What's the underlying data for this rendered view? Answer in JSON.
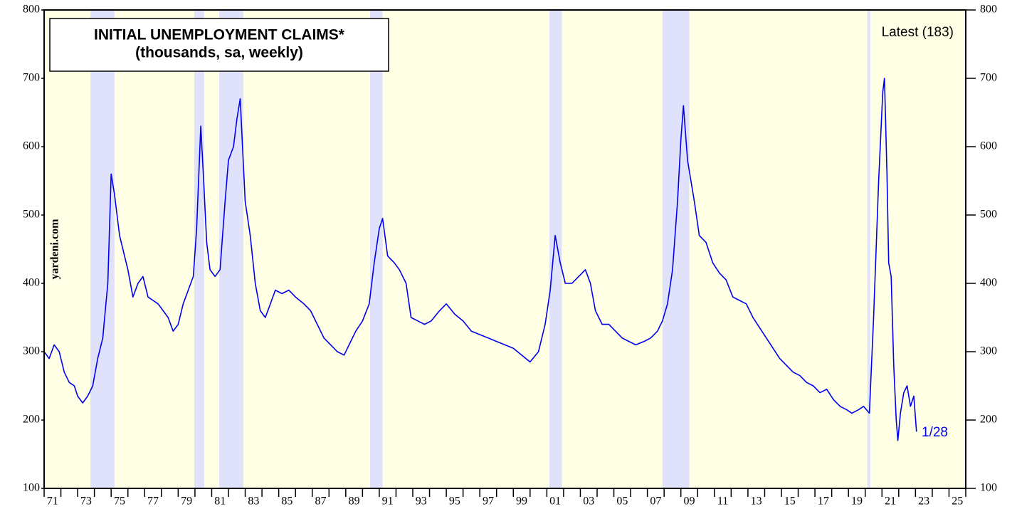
{
  "chart_data": {
    "type": "line",
    "title": "INITIAL UNEMPLOYMENT CLAIMS*",
    "subtitle": "(thousands, sa, weekly)",
    "annotations": {
      "latest": "Latest (183)",
      "date": "1/28",
      "source": "yardeni.com"
    },
    "x": [
      1971.0,
      1971.3,
      1971.6,
      1971.9,
      1972.2,
      1972.5,
      1972.8,
      1973.0,
      1973.3,
      1973.6,
      1973.9,
      1974.2,
      1974.5,
      1974.8,
      1975.0,
      1975.2,
      1975.5,
      1975.8,
      1976.0,
      1976.3,
      1976.6,
      1976.9,
      1977.2,
      1977.5,
      1977.8,
      1978.1,
      1978.4,
      1978.7,
      1979.0,
      1979.3,
      1979.6,
      1979.9,
      1980.1,
      1980.35,
      1980.5,
      1980.7,
      1980.9,
      1981.2,
      1981.5,
      1981.8,
      1982.0,
      1982.3,
      1982.5,
      1982.7,
      1983.0,
      1983.3,
      1983.6,
      1983.9,
      1984.2,
      1984.5,
      1984.8,
      1985.2,
      1985.6,
      1986.0,
      1986.5,
      1986.9,
      1987.3,
      1987.7,
      1988.1,
      1988.5,
      1988.9,
      1989.2,
      1989.6,
      1990.0,
      1990.4,
      1990.7,
      1991.0,
      1991.2,
      1991.5,
      1991.9,
      1992.2,
      1992.6,
      1992.9,
      1993.3,
      1993.7,
      1994.1,
      1994.6,
      1995.0,
      1995.5,
      1996.0,
      1996.5,
      1997.0,
      1997.5,
      1998.0,
      1998.5,
      1999.0,
      1999.5,
      2000.0,
      2000.5,
      2000.9,
      2001.2,
      2001.5,
      2001.8,
      2002.1,
      2002.5,
      2002.9,
      2003.3,
      2003.6,
      2003.9,
      2004.3,
      2004.7,
      2005.1,
      2005.5,
      2005.9,
      2006.3,
      2006.8,
      2007.2,
      2007.6,
      2007.9,
      2008.2,
      2008.5,
      2008.8,
      2009.0,
      2009.15,
      2009.4,
      2009.8,
      2010.1,
      2010.5,
      2010.9,
      2011.3,
      2011.7,
      2012.1,
      2012.5,
      2012.9,
      2013.3,
      2013.7,
      2014.1,
      2014.5,
      2014.9,
      2015.3,
      2015.7,
      2016.1,
      2016.5,
      2016.9,
      2017.3,
      2017.7,
      2018.1,
      2018.5,
      2018.9,
      2019.2,
      2019.6,
      2019.9,
      2020.25,
      2020.5,
      2020.8,
      2021.05,
      2021.15,
      2021.3,
      2021.4,
      2021.55,
      2021.7,
      2021.85,
      2021.95,
      2022.1,
      2022.3,
      2022.5,
      2022.7,
      2022.9,
      2023.06
    ],
    "series": [
      {
        "name": "Initial unemployment claims",
        "color": "#0000ee",
        "values": [
          300,
          290,
          310,
          300,
          270,
          255,
          250,
          235,
          225,
          235,
          250,
          290,
          320,
          400,
          560,
          530,
          470,
          440,
          420,
          380,
          400,
          410,
          380,
          375,
          370,
          360,
          350,
          330,
          340,
          370,
          390,
          410,
          480,
          630,
          560,
          460,
          420,
          410,
          420,
          520,
          580,
          600,
          640,
          670,
          520,
          470,
          400,
          360,
          350,
          370,
          390,
          385,
          390,
          380,
          370,
          360,
          340,
          320,
          310,
          300,
          295,
          310,
          330,
          345,
          370,
          430,
          480,
          495,
          440,
          430,
          420,
          400,
          350,
          345,
          340,
          345,
          360,
          370,
          355,
          345,
          330,
          325,
          320,
          315,
          310,
          305,
          295,
          285,
          300,
          340,
          390,
          470,
          430,
          400,
          400,
          410,
          420,
          400,
          360,
          340,
          340,
          330,
          320,
          315,
          310,
          315,
          320,
          330,
          345,
          370,
          420,
          520,
          610,
          660,
          580,
          520,
          470,
          460,
          430,
          415,
          405,
          380,
          375,
          370,
          350,
          335,
          320,
          305,
          290,
          280,
          270,
          265,
          255,
          250,
          240,
          245,
          230,
          220,
          215,
          210,
          215,
          220,
          210,
          350,
          550,
          680,
          700,
          560,
          430,
          410,
          280,
          200,
          170,
          210,
          240,
          250,
          220,
          235,
          183
        ]
      }
    ],
    "recessions": [
      [
        1973.76,
        1975.2
      ],
      [
        1979.96,
        1980.55
      ],
      [
        1981.45,
        1982.89
      ],
      [
        1990.45,
        1991.2
      ],
      [
        2001.15,
        2001.9
      ],
      [
        2007.9,
        2009.5
      ],
      [
        2020.13,
        2020.3
      ]
    ],
    "xlim": [
      1971,
      2026
    ],
    "xticks": [
      {
        "value": 1971,
        "label": "71"
      },
      {
        "value": 1973,
        "label": "73"
      },
      {
        "value": 1975,
        "label": "75"
      },
      {
        "value": 1977,
        "label": "77"
      },
      {
        "value": 1979,
        "label": "79"
      },
      {
        "value": 1981,
        "label": "81"
      },
      {
        "value": 1983,
        "label": "83"
      },
      {
        "value": 1985,
        "label": "85"
      },
      {
        "value": 1987,
        "label": "87"
      },
      {
        "value": 1989,
        "label": "89"
      },
      {
        "value": 1991,
        "label": "91"
      },
      {
        "value": 1993,
        "label": "93"
      },
      {
        "value": 1995,
        "label": "95"
      },
      {
        "value": 1997,
        "label": "97"
      },
      {
        "value": 1999,
        "label": "99"
      },
      {
        "value": 2001,
        "label": "01"
      },
      {
        "value": 2003,
        "label": "03"
      },
      {
        "value": 2005,
        "label": "05"
      },
      {
        "value": 2007,
        "label": "07"
      },
      {
        "value": 2009,
        "label": "09"
      },
      {
        "value": 2011,
        "label": "11"
      },
      {
        "value": 2013,
        "label": "13"
      },
      {
        "value": 2015,
        "label": "15"
      },
      {
        "value": 2017,
        "label": "17"
      },
      {
        "value": 2019,
        "label": "19"
      },
      {
        "value": 2021,
        "label": "21"
      },
      {
        "value": 2023,
        "label": "23"
      },
      {
        "value": 2025,
        "label": "25"
      }
    ],
    "xminorticks": [
      1972,
      1974,
      1976,
      1978,
      1980,
      1982,
      1984,
      1986,
      1988,
      1990,
      1992,
      1994,
      1996,
      1998,
      2000,
      2002,
      2004,
      2006,
      2008,
      2010,
      2012,
      2014,
      2016,
      2018,
      2020,
      2022,
      2024,
      2026
    ],
    "ylim": [
      100,
      800
    ],
    "yticks": [
      100,
      200,
      300,
      400,
      500,
      600,
      700,
      800
    ]
  }
}
